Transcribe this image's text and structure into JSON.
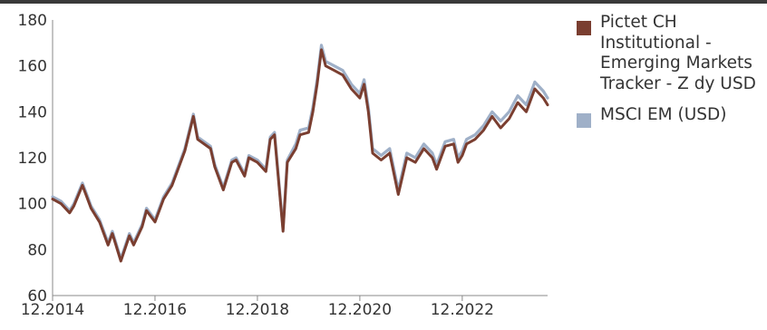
{
  "chart_data": {
    "type": "line",
    "title": "",
    "xlabel": "",
    "ylabel": "",
    "ylim": [
      60,
      180
    ],
    "yticks": [
      60,
      80,
      100,
      120,
      140,
      160,
      180
    ],
    "xlim": [
      "2014-12",
      "2024-08"
    ],
    "xticks": [
      "12.2014",
      "12.2016",
      "12.2018",
      "12.2020",
      "12.2022"
    ],
    "grid": false,
    "legend_position": "right",
    "x": [
      "2014-12",
      "2015-02",
      "2015-04",
      "2015-05",
      "2015-07",
      "2015-08",
      "2015-09",
      "2015-11",
      "2016-01",
      "2016-02",
      "2016-04",
      "2016-06",
      "2016-07",
      "2016-09",
      "2016-10",
      "2016-12",
      "2017-02",
      "2017-04",
      "2017-06",
      "2017-07",
      "2017-09",
      "2017-10",
      "2018-01",
      "2018-02",
      "2018-04",
      "2018-06",
      "2018-07",
      "2018-09",
      "2018-10",
      "2018-12",
      "2019-02",
      "2019-03",
      "2019-04",
      "2019-06",
      "2019-07",
      "2019-09",
      "2019-10",
      "2019-12",
      "2020-01",
      "2020-02",
      "2020-03",
      "2020-04",
      "2020-06",
      "2020-08",
      "2020-10",
      "2020-12",
      "2021-01",
      "2021-02",
      "2021-03",
      "2021-05",
      "2021-07",
      "2021-09",
      "2021-11",
      "2022-01",
      "2022-03",
      "2022-05",
      "2022-06",
      "2022-08",
      "2022-10",
      "2022-11",
      "2022-12",
      "2023-01",
      "2023-03",
      "2023-05",
      "2023-07",
      "2023-09",
      "2023-11",
      "2024-01",
      "2024-03",
      "2024-05",
      "2024-06",
      "2024-07",
      "2024-08"
    ],
    "series": [
      {
        "name": "Pictet CH Institutional - Emerging Markets Tracker - Z dy USD",
        "color": "#7a3e30",
        "values": [
          102,
          100,
          96,
          99,
          108,
          103,
          98,
          92,
          82,
          87,
          75,
          86,
          82,
          90,
          97,
          92,
          102,
          108,
          118,
          123,
          138,
          128,
          124,
          116,
          106,
          118,
          119,
          112,
          120,
          118,
          114,
          128,
          130,
          88,
          118,
          124,
          130,
          131,
          140,
          152,
          167,
          160,
          158,
          156,
          150,
          146,
          152,
          140,
          122,
          119,
          122,
          104,
          120,
          118,
          124,
          120,
          115,
          125,
          126,
          118,
          121,
          126,
          128,
          132,
          138,
          133,
          137,
          144,
          140,
          150,
          148,
          146,
          143
        ]
      },
      {
        "name": "MSCI EM (USD)",
        "color": "#9fb0c8",
        "values": [
          103,
          101,
          97,
          100,
          109,
          104,
          99,
          93,
          83,
          88,
          76,
          87,
          83,
          91,
          98,
          93,
          103,
          109,
          119,
          124,
          139,
          129,
          125,
          117,
          107,
          119,
          120,
          113,
          121,
          119,
          115,
          129,
          131,
          89,
          119,
          126,
          132,
          133,
          142,
          154,
          169,
          162,
          160,
          158,
          152,
          148,
          154,
          142,
          124,
          121,
          124,
          106,
          122,
          120,
          126,
          122,
          117,
          127,
          128,
          120,
          123,
          128,
          130,
          134,
          140,
          136,
          140,
          147,
          143,
          153,
          151,
          149,
          146
        ]
      }
    ]
  }
}
